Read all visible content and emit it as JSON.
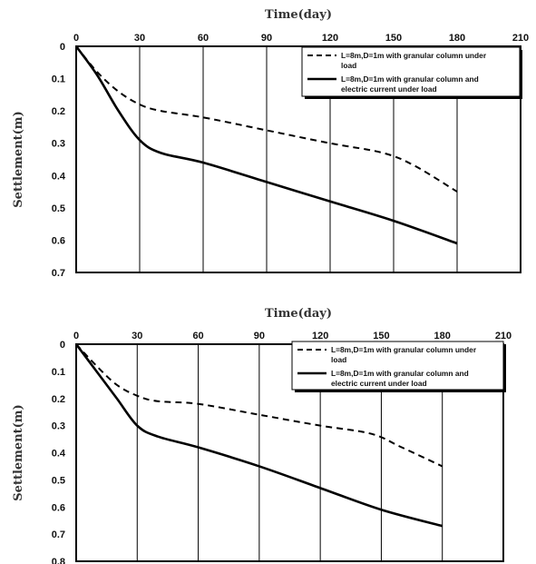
{
  "chart_data": [
    {
      "type": "line",
      "title": "",
      "xlabel": "Time(day)",
      "ylabel": "Settlement(m)",
      "xlim": [
        0,
        210
      ],
      "ylim": [
        0,
        0.7
      ],
      "y_inverted": true,
      "x_axis_position": "top",
      "xticks": [
        "0",
        "30",
        "60",
        "90",
        "120",
        "150",
        "180",
        "210"
      ],
      "yticks": [
        "0",
        "0.1",
        "0.2",
        "0.3",
        "0.4",
        "0.5",
        "0.6",
        "0.7"
      ],
      "grid": "vertical",
      "legend_position": "top-right",
      "series": [
        {
          "name": "L=8m,D=1m with granular column under load",
          "legend_lines": [
            "L=8m,D=1m with granular column under",
            "load"
          ],
          "style": "dashed",
          "color": "#000000",
          "x": [
            0,
            10,
            20,
            30,
            40,
            60,
            90,
            120,
            145,
            160,
            180
          ],
          "y": [
            0,
            0.08,
            0.14,
            0.18,
            0.2,
            0.22,
            0.26,
            0.3,
            0.33,
            0.37,
            0.45
          ]
        },
        {
          "name": "L=8m,D=1m with granular column and electric current under load",
          "legend_lines": [
            "L=8m,D=1m with granular column and",
            "electric current under load"
          ],
          "style": "solid",
          "color": "#000000",
          "x": [
            0,
            10,
            20,
            30,
            40,
            60,
            90,
            120,
            150,
            180
          ],
          "y": [
            0,
            0.09,
            0.2,
            0.29,
            0.33,
            0.36,
            0.42,
            0.48,
            0.54,
            0.61
          ]
        }
      ]
    },
    {
      "type": "line",
      "title": "",
      "xlabel": "Time(day)",
      "ylabel": "Settlement(m)",
      "xlim": [
        0,
        210
      ],
      "ylim": [
        0,
        0.8
      ],
      "y_inverted": true,
      "x_axis_position": "top",
      "xticks": [
        "0",
        "30",
        "60",
        "90",
        "120",
        "150",
        "180",
        "210"
      ],
      "yticks": [
        "0",
        "0.1",
        "0.2",
        "0.3",
        "0.4",
        "0.5",
        "0.6",
        "0.7",
        "0.8"
      ],
      "grid": "vertical",
      "legend_position": "top-right",
      "series": [
        {
          "name": "L=8m,D=1m with granular column under load",
          "legend_lines": [
            "L=8m,D=1m with granular column under",
            "load"
          ],
          "style": "dashed",
          "color": "#000000",
          "x": [
            0,
            10,
            20,
            30,
            40,
            60,
            90,
            120,
            145,
            160,
            180
          ],
          "y": [
            0,
            0.08,
            0.15,
            0.19,
            0.21,
            0.22,
            0.26,
            0.3,
            0.33,
            0.38,
            0.45
          ]
        },
        {
          "name": "L=8m,D=1m with granular column and electric current under load",
          "legend_lines": [
            "L=8m,D=1m with granular column and",
            "electric current under load"
          ],
          "style": "solid",
          "color": "#000000",
          "x": [
            0,
            10,
            20,
            30,
            40,
            60,
            90,
            120,
            150,
            180
          ],
          "y": [
            0,
            0.1,
            0.2,
            0.3,
            0.34,
            0.38,
            0.45,
            0.53,
            0.61,
            0.67
          ]
        }
      ]
    }
  ]
}
